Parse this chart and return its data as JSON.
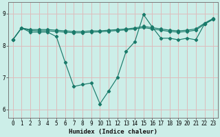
{
  "xlabel": "Humidex (Indice chaleur)",
  "xlim": [
    -0.5,
    23.5
  ],
  "ylim": [
    5.75,
    9.35
  ],
  "yticks": [
    6,
    7,
    8,
    9
  ],
  "xticks": [
    0,
    1,
    2,
    3,
    4,
    5,
    6,
    7,
    8,
    9,
    10,
    11,
    12,
    13,
    14,
    15,
    16,
    17,
    18,
    19,
    20,
    21,
    22,
    23
  ],
  "background_color": "#cceee8",
  "grid_color": "#ddbcbc",
  "line_color": "#1a7a6a",
  "line1_x": [
    0,
    1,
    2,
    3,
    4,
    5,
    6,
    7,
    8,
    9,
    10,
    11,
    12,
    13,
    14,
    15,
    16,
    17,
    18,
    19,
    20,
    21,
    22,
    23
  ],
  "line1_y": [
    8.18,
    8.55,
    8.42,
    8.42,
    8.42,
    8.28,
    7.48,
    6.72,
    6.78,
    6.83,
    6.18,
    6.58,
    7.0,
    7.82,
    8.12,
    8.97,
    8.58,
    8.23,
    8.23,
    8.18,
    8.23,
    8.18,
    8.68,
    8.83
  ],
  "line2_x": [
    0,
    1,
    2,
    3,
    4,
    5,
    6,
    7,
    8,
    9,
    10,
    11,
    12,
    13,
    14,
    15,
    16,
    17,
    18,
    19,
    20,
    21,
    22,
    23
  ],
  "line2_y": [
    8.18,
    8.55,
    8.5,
    8.5,
    8.5,
    8.48,
    8.46,
    8.44,
    8.44,
    8.46,
    8.46,
    8.48,
    8.5,
    8.52,
    8.55,
    8.6,
    8.56,
    8.52,
    8.48,
    8.46,
    8.48,
    8.52,
    8.7,
    8.85
  ],
  "line3_x": [
    0,
    1,
    2,
    3,
    4,
    5,
    6,
    7,
    8,
    9,
    10,
    11,
    12,
    13,
    14,
    15,
    16,
    17,
    18,
    19,
    20,
    21,
    22,
    23
  ],
  "line3_y": [
    8.18,
    8.55,
    8.47,
    8.46,
    8.46,
    8.44,
    8.42,
    8.4,
    8.4,
    8.42,
    8.43,
    8.45,
    8.47,
    8.49,
    8.52,
    8.56,
    8.52,
    8.48,
    8.44,
    8.42,
    8.44,
    8.48,
    8.67,
    8.82
  ]
}
